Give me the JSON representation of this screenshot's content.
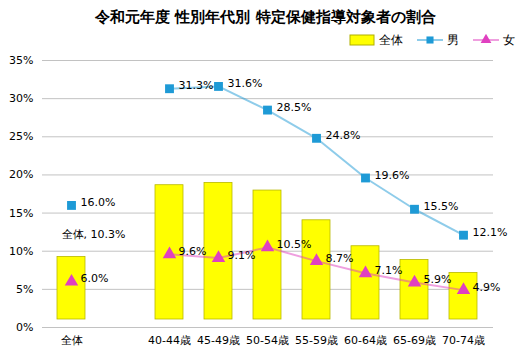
{
  "chart_data": {
    "type": "bar",
    "title": "令和元年度 性別年代別 特定保健指導対象者の割合",
    "categories": [
      "全体",
      null,
      "40-44歳",
      "45-49歳",
      "50-54歳",
      "55-59歳",
      "60-64歳",
      "65-69歳",
      "70-74歳"
    ],
    "series": [
      {
        "name": "全体",
        "type": "bar",
        "color": "#ffff00",
        "values": [
          10.3,
          null,
          19.7,
          20.0,
          19.0,
          15.1,
          11.7,
          9.9,
          8.2
        ],
        "value_labels": [
          "全体, 10.3%",
          null,
          null,
          null,
          null,
          null,
          null,
          null,
          null
        ]
      },
      {
        "name": "男",
        "type": "line",
        "color": "#1e9ad6",
        "marker": "square",
        "values": [
          16.0,
          null,
          31.3,
          31.6,
          28.5,
          24.8,
          19.6,
          15.5,
          12.1
        ],
        "value_labels": [
          "16.0%",
          null,
          "31.3%",
          "31.6%",
          "28.5%",
          "24.8%",
          "19.6%",
          "15.5%",
          "12.1%"
        ]
      },
      {
        "name": "女",
        "type": "line",
        "color": "#e040c0",
        "marker": "triangle",
        "values": [
          6.0,
          null,
          9.6,
          9.1,
          10.5,
          8.7,
          7.1,
          5.9,
          4.9
        ],
        "value_labels": [
          "6.0%",
          null,
          "9.6%",
          "9.1%",
          "10.5%",
          "8.7%",
          "7.1%",
          "5.9%",
          "4.9%"
        ]
      }
    ],
    "ylim": [
      0,
      35
    ],
    "yticks": [
      {
        "value": 0,
        "label": "0%"
      },
      {
        "value": 5,
        "label": "5%"
      },
      {
        "value": 10,
        "label": "10%"
      },
      {
        "value": 15,
        "label": "15%"
      },
      {
        "value": 20,
        "label": "20%"
      },
      {
        "value": 25,
        "label": "25%"
      },
      {
        "value": 30,
        "label": "30%"
      },
      {
        "value": 35,
        "label": "35%"
      }
    ],
    "grid": true,
    "legend": "top-right",
    "data_labels": true
  }
}
